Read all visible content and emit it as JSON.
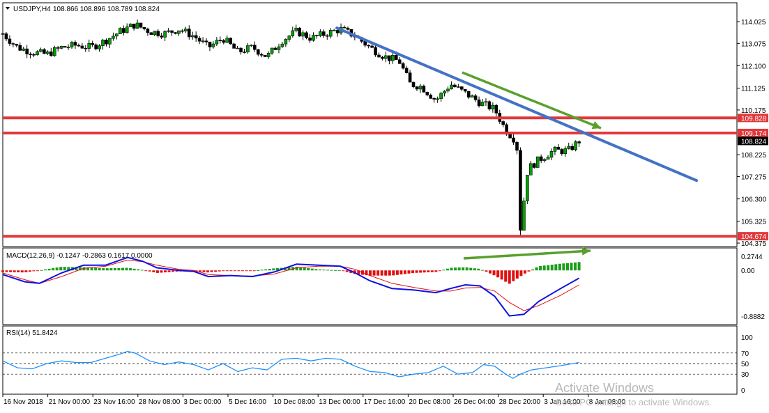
{
  "header": {
    "symbol": "USDJPY,H4",
    "ohlc": "108.866 108.896 108.789 108.824"
  },
  "chart_data": {
    "type": "candlestick",
    "price_axis": {
      "ylim": [
        104.375,
        114.3
      ],
      "ticks": [
        "114.025",
        "113.075",
        "112.100",
        "111.125",
        "110.175",
        "108.225",
        "107.275",
        "106.300",
        "105.325",
        "104.375"
      ]
    },
    "price_labels": [
      {
        "value": 109.828,
        "label": "109.828",
        "color": "#e0393b"
      },
      {
        "value": 109.174,
        "label": "109.174",
        "color": "#e0393b"
      },
      {
        "value": 108.824,
        "label": "108.824",
        "color": "#000000"
      },
      {
        "value": 104.674,
        "label": "104.674",
        "color": "#e0393b"
      }
    ],
    "horizontal_lines": [
      {
        "value": 109.83,
        "color": "#e0393b"
      },
      {
        "value": 109.17,
        "color": "#e0393b"
      },
      {
        "value": 104.67,
        "color": "#e0393b"
      }
    ],
    "trendline": {
      "from": [
        0.455,
        113.75
      ],
      "to": [
        0.945,
        107.1
      ],
      "color": "#4472c4"
    },
    "close_path": [
      [
        0.0,
        113.5
      ],
      [
        0.02,
        112.9
      ],
      [
        0.04,
        112.7
      ],
      [
        0.06,
        112.6
      ],
      [
        0.08,
        112.9
      ],
      [
        0.1,
        113.0
      ],
      [
        0.12,
        112.9
      ],
      [
        0.14,
        113.2
      ],
      [
        0.16,
        113.6
      ],
      [
        0.18,
        113.9
      ],
      [
        0.2,
        113.6
      ],
      [
        0.22,
        113.5
      ],
      [
        0.24,
        113.7
      ],
      [
        0.26,
        113.4
      ],
      [
        0.28,
        112.9
      ],
      [
        0.3,
        113.3
      ],
      [
        0.32,
        112.7
      ],
      [
        0.34,
        112.9
      ],
      [
        0.36,
        112.5
      ],
      [
        0.38,
        113.2
      ],
      [
        0.4,
        113.6
      ],
      [
        0.42,
        113.3
      ],
      [
        0.44,
        113.5
      ],
      [
        0.46,
        113.7
      ],
      [
        0.48,
        113.4
      ],
      [
        0.5,
        112.9
      ],
      [
        0.52,
        112.5
      ],
      [
        0.54,
        112.3
      ],
      [
        0.555,
        111.3
      ],
      [
        0.57,
        111.2
      ],
      [
        0.59,
        110.6
      ],
      [
        0.61,
        111.3
      ],
      [
        0.63,
        110.9
      ],
      [
        0.65,
        110.5
      ],
      [
        0.67,
        110.2
      ],
      [
        0.685,
        109.3
      ],
      [
        0.7,
        108.8
      ],
      [
        0.705,
        105.0
      ],
      [
        0.715,
        107.6
      ],
      [
        0.73,
        108.0
      ],
      [
        0.75,
        108.4
      ],
      [
        0.77,
        108.4
      ],
      [
        0.785,
        108.82
      ]
    ],
    "candle_ranges": {
      "x0": 0.0,
      "x1": 0.785
    },
    "x_ticks": [
      "16 Nov 2018",
      "21 Nov 00:00",
      "23 Nov 16:00",
      "28 Nov 08:00",
      "3 Dec 00:00",
      "5 Dec 16:00",
      "10 Dec 08:00",
      "13 Dec 00:00",
      "17 Dec 16:00",
      "20 Dec 08:00",
      "26 Dec 04:00",
      "28 Dec 20:00",
      "3 Jan 16:00",
      "8 Jan 08:00"
    ],
    "macd": {
      "title": "MACD(12,26,9) -0.1247 -0.2863 0.1617 0.0000",
      "ylim": [
        -0.98,
        0.38
      ],
      "ticks": [
        "0.2744",
        "0.00",
        "-0.8882"
      ],
      "main": [
        [
          0.0,
          -0.08
        ],
        [
          0.03,
          -0.22
        ],
        [
          0.05,
          -0.25
        ],
        [
          0.08,
          -0.05
        ],
        [
          0.11,
          0.1
        ],
        [
          0.14,
          0.1
        ],
        [
          0.17,
          0.25
        ],
        [
          0.19,
          0.18
        ],
        [
          0.21,
          0.05
        ],
        [
          0.24,
          0.0
        ],
        [
          0.26,
          -0.02
        ],
        [
          0.28,
          -0.12
        ],
        [
          0.31,
          -0.1
        ],
        [
          0.34,
          -0.12
        ],
        [
          0.37,
          -0.03
        ],
        [
          0.4,
          0.12
        ],
        [
          0.43,
          0.1
        ],
        [
          0.46,
          0.08
        ],
        [
          0.48,
          -0.05
        ],
        [
          0.5,
          -0.2
        ],
        [
          0.53,
          -0.35
        ],
        [
          0.56,
          -0.38
        ],
        [
          0.59,
          -0.43
        ],
        [
          0.61,
          -0.35
        ],
        [
          0.63,
          -0.28
        ],
        [
          0.65,
          -0.3
        ],
        [
          0.67,
          -0.5
        ],
        [
          0.69,
          -0.88
        ],
        [
          0.71,
          -0.85
        ],
        [
          0.73,
          -0.6
        ],
        [
          0.76,
          -0.35
        ],
        [
          0.785,
          -0.15
        ]
      ],
      "signal": [
        [
          0.0,
          -0.05
        ],
        [
          0.03,
          -0.18
        ],
        [
          0.05,
          -0.25
        ],
        [
          0.08,
          -0.12
        ],
        [
          0.11,
          0.04
        ],
        [
          0.14,
          0.08
        ],
        [
          0.17,
          0.2
        ],
        [
          0.19,
          0.17
        ],
        [
          0.21,
          0.1
        ],
        [
          0.24,
          0.02
        ],
        [
          0.26,
          0.0
        ],
        [
          0.28,
          -0.08
        ],
        [
          0.31,
          -0.1
        ],
        [
          0.34,
          -0.11
        ],
        [
          0.37,
          -0.07
        ],
        [
          0.4,
          0.05
        ],
        [
          0.43,
          0.08
        ],
        [
          0.46,
          0.08
        ],
        [
          0.48,
          0.02
        ],
        [
          0.5,
          -0.1
        ],
        [
          0.53,
          -0.25
        ],
        [
          0.56,
          -0.33
        ],
        [
          0.59,
          -0.4
        ],
        [
          0.61,
          -0.4
        ],
        [
          0.63,
          -0.34
        ],
        [
          0.65,
          -0.33
        ],
        [
          0.67,
          -0.4
        ],
        [
          0.69,
          -0.62
        ],
        [
          0.71,
          -0.78
        ],
        [
          0.73,
          -0.68
        ],
        [
          0.76,
          -0.48
        ],
        [
          0.785,
          -0.28
        ]
      ],
      "hist": [
        [
          0.0,
          -0.03
        ],
        [
          0.03,
          -0.04
        ],
        [
          0.05,
          0.0
        ],
        [
          0.08,
          0.07
        ],
        [
          0.11,
          0.06
        ],
        [
          0.14,
          0.04
        ],
        [
          0.17,
          0.05
        ],
        [
          0.19,
          0.01
        ],
        [
          0.21,
          -0.05
        ],
        [
          0.24,
          -0.02
        ],
        [
          0.26,
          -0.02
        ],
        [
          0.28,
          -0.04
        ],
        [
          0.31,
          0.0
        ],
        [
          0.34,
          -0.01
        ],
        [
          0.37,
          0.04
        ],
        [
          0.4,
          0.07
        ],
        [
          0.43,
          0.02
        ],
        [
          0.46,
          0.0
        ],
        [
          0.48,
          -0.07
        ],
        [
          0.5,
          -0.1
        ],
        [
          0.53,
          -0.1
        ],
        [
          0.56,
          -0.05
        ],
        [
          0.59,
          -0.03
        ],
        [
          0.61,
          0.05
        ],
        [
          0.63,
          0.06
        ],
        [
          0.65,
          0.03
        ],
        [
          0.67,
          -0.1
        ],
        [
          0.69,
          -0.26
        ],
        [
          0.71,
          -0.07
        ],
        [
          0.73,
          0.08
        ],
        [
          0.76,
          0.13
        ],
        [
          0.785,
          0.16
        ]
      ]
    },
    "rsi": {
      "title": "RSI(14) 51.8424",
      "ylim": [
        0,
        100
      ],
      "ticks": [
        "100",
        "70",
        "50",
        "30",
        "0"
      ],
      "levels": [
        70,
        50,
        30
      ],
      "values": [
        [
          0.0,
          55
        ],
        [
          0.02,
          42
        ],
        [
          0.04,
          40
        ],
        [
          0.06,
          50
        ],
        [
          0.08,
          55
        ],
        [
          0.1,
          52
        ],
        [
          0.12,
          52
        ],
        [
          0.14,
          60
        ],
        [
          0.16,
          68
        ],
        [
          0.17,
          73
        ],
        [
          0.18,
          70
        ],
        [
          0.2,
          55
        ],
        [
          0.22,
          48
        ],
        [
          0.24,
          53
        ],
        [
          0.26,
          48
        ],
        [
          0.28,
          38
        ],
        [
          0.3,
          50
        ],
        [
          0.32,
          35
        ],
        [
          0.34,
          42
        ],
        [
          0.36,
          38
        ],
        [
          0.38,
          58
        ],
        [
          0.4,
          60
        ],
        [
          0.42,
          55
        ],
        [
          0.44,
          60
        ],
        [
          0.46,
          58
        ],
        [
          0.48,
          45
        ],
        [
          0.5,
          35
        ],
        [
          0.52,
          33
        ],
        [
          0.54,
          25
        ],
        [
          0.56,
          30
        ],
        [
          0.58,
          33
        ],
        [
          0.6,
          45
        ],
        [
          0.62,
          30
        ],
        [
          0.64,
          33
        ],
        [
          0.655,
          48
        ],
        [
          0.67,
          45
        ],
        [
          0.685,
          30
        ],
        [
          0.695,
          22
        ],
        [
          0.705,
          30
        ],
        [
          0.72,
          38
        ],
        [
          0.74,
          42
        ],
        [
          0.76,
          46
        ],
        [
          0.785,
          52
        ]
      ]
    },
    "watermark": {
      "line1": "Activate Windows",
      "line2": "Go to PC settings to activate Windows."
    }
  }
}
